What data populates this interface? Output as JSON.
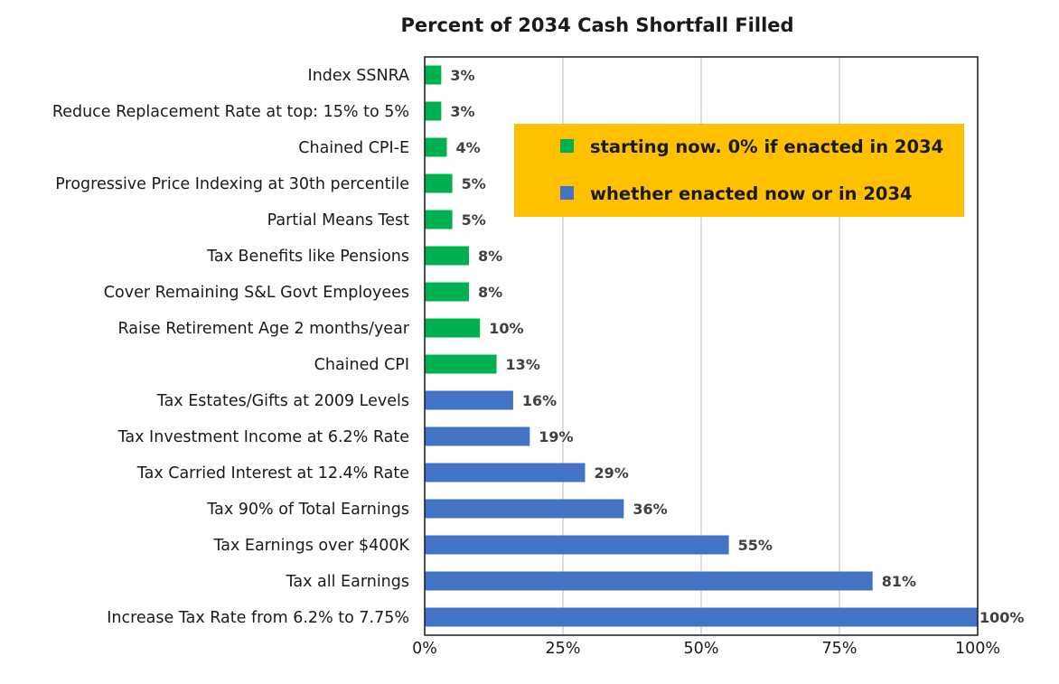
{
  "chart_data": {
    "type": "bar",
    "orientation": "horizontal",
    "title": "Percent of 2034 Cash Shortfall Filled",
    "xlabel": "",
    "ylabel": "",
    "xlim": [
      0,
      100
    ],
    "x_ticks": [
      "0%",
      "25%",
      "50%",
      "75%",
      "100%"
    ],
    "x_tick_values": [
      0,
      25,
      50,
      75,
      100
    ],
    "grid": "vertical",
    "legend_position": "top-right",
    "legend": [
      {
        "text": "starting now. 0% if enacted in 2034",
        "color": "#00b050"
      },
      {
        "text": "whether enacted now or in 2034",
        "color": "#4472c4"
      }
    ],
    "legend_background": "#ffc000",
    "categories": [
      "Index SSNRA",
      "Reduce Replacement Rate at top: 15% to 5%",
      "Chained CPI-E",
      "Progressive Price Indexing at 30th percentile",
      "Partial Means Test",
      "Tax Benefits like Pensions",
      "Cover Remaining S&L Govt Employees",
      "Raise Retirement Age 2 months/year",
      "Chained CPI",
      "Tax Estates/Gifts at 2009 Levels",
      "Tax Investment Income at 6.2% Rate",
      "Tax Carried Interest at 12.4% Rate",
      "Tax 90% of Total Earnings",
      "Tax Earnings over $400K",
      "Tax all Earnings",
      "Increase Tax Rate from 6.2% to 7.75%"
    ],
    "values": [
      3,
      3,
      4,
      5,
      5,
      8,
      8,
      10,
      13,
      16,
      19,
      29,
      36,
      55,
      81,
      100
    ],
    "value_labels": [
      "3%",
      "3%",
      "4%",
      "5%",
      "5%",
      "8%",
      "8%",
      "10%",
      "13%",
      "16%",
      "19%",
      "29%",
      "36%",
      "55%",
      "81%",
      "100%"
    ],
    "bar_groups": [
      0,
      0,
      0,
      0,
      0,
      0,
      0,
      0,
      0,
      1,
      1,
      1,
      1,
      1,
      1,
      1
    ],
    "colors": {
      "green": "#00b050",
      "blue": "#4472c4",
      "grid": "#d0d0d0",
      "axis": "#1a1a1a"
    }
  }
}
